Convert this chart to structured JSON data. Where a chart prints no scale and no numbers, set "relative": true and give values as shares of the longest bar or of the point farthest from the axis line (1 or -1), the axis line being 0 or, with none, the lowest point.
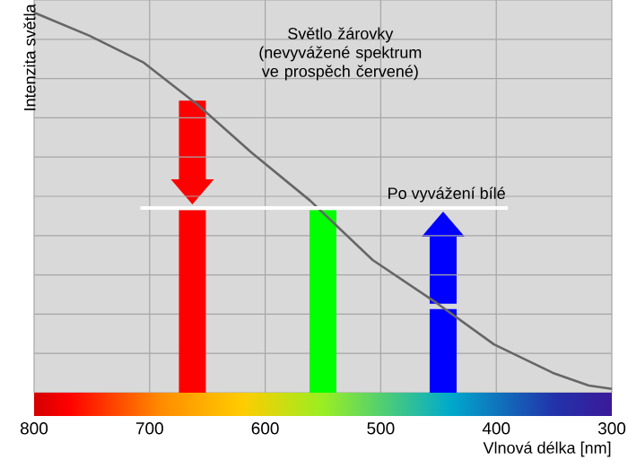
{
  "chart_data": {
    "type": "line",
    "relative": true,
    "xlabel": "Vlnová délka [nm]",
    "ylabel": "Intenzita světla",
    "xlim": [
      800,
      300
    ],
    "xticks": [
      800,
      700,
      600,
      500,
      400,
      300
    ],
    "grid": true,
    "annotations": [
      "Světlo žárovky (nevyvážené spektrum ve prospěch červené)"
    ],
    "series": [
      {
        "color": "#666666",
        "x": [
          800,
          752,
          705,
          659,
          612,
          561,
          507,
          454,
          402,
          351,
          320,
          300
        ],
        "values": [
          1.0,
          0.939,
          0.868,
          0.759,
          0.632,
          0.505,
          0.349,
          0.241,
          0.127,
          0.052,
          0.019,
          0.01
        ]
      },
      {
        "name": "Po vyvážení bílé",
        "color": "#ffffff",
        "x": [
          708,
          390
        ],
        "values": [
          0.486,
          0.486
        ]
      },
      {
        "type": "bar",
        "x": [
          663,
          550,
          446
        ],
        "values": [
          0.48,
          0.48,
          0.22
        ],
        "colors": [
          "#ff0000",
          "#00ff00",
          "#0000ff"
        ]
      }
    ]
  }
}
